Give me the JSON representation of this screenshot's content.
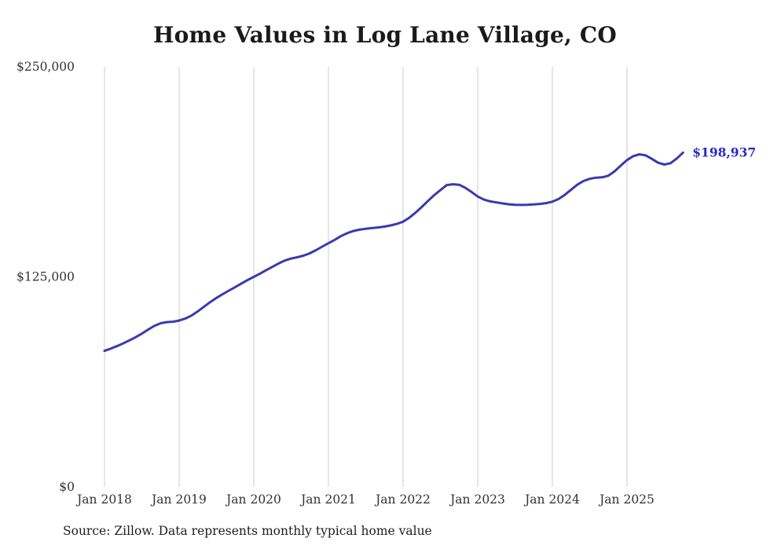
{
  "page": {
    "title": "Home Values in Log Lane Village, CO",
    "source_note": "Source: Zillow. Data represents monthly typical home value"
  },
  "chart_data": {
    "type": "line",
    "title": "Home Values in Log Lane Village, CO",
    "x": [
      "2018-01",
      "2018-02",
      "2018-03",
      "2018-04",
      "2018-05",
      "2018-06",
      "2018-07",
      "2018-08",
      "2018-09",
      "2018-10",
      "2018-11",
      "2018-12",
      "2019-01",
      "2019-02",
      "2019-03",
      "2019-04",
      "2019-05",
      "2019-06",
      "2019-07",
      "2019-08",
      "2019-09",
      "2019-10",
      "2019-11",
      "2019-12",
      "2020-01",
      "2020-02",
      "2020-03",
      "2020-04",
      "2020-05",
      "2020-06",
      "2020-07",
      "2020-08",
      "2020-09",
      "2020-10",
      "2020-11",
      "2020-12",
      "2021-01",
      "2021-02",
      "2021-03",
      "2021-04",
      "2021-05",
      "2021-06",
      "2021-07",
      "2021-08",
      "2021-09",
      "2021-10",
      "2021-11",
      "2021-12",
      "2022-01",
      "2022-02",
      "2022-03",
      "2022-04",
      "2022-05",
      "2022-06",
      "2022-07",
      "2022-08",
      "2022-09",
      "2022-10",
      "2022-11",
      "2022-12",
      "2023-01",
      "2023-02",
      "2023-03",
      "2023-04",
      "2023-05",
      "2023-06",
      "2023-07",
      "2023-08",
      "2023-09",
      "2023-10",
      "2023-11",
      "2023-12",
      "2024-01",
      "2024-02",
      "2024-03",
      "2024-04",
      "2024-05",
      "2024-06",
      "2024-07",
      "2024-08",
      "2024-09",
      "2024-10",
      "2024-11",
      "2024-12",
      "2025-01",
      "2025-02",
      "2025-03",
      "2025-04",
      "2025-05",
      "2025-06",
      "2025-07",
      "2025-08",
      "2025-09",
      "2025-10"
    ],
    "values": [
      81000,
      82300,
      83800,
      85400,
      87200,
      89100,
      91200,
      93600,
      95800,
      97400,
      98100,
      98300,
      99000,
      100200,
      102000,
      104500,
      107300,
      110000,
      112500,
      114700,
      116800,
      118900,
      121000,
      123100,
      125000,
      126900,
      129000,
      131000,
      133000,
      134700,
      135900,
      136700,
      137600,
      139000,
      140900,
      143000,
      145000,
      147000,
      149200,
      151000,
      152300,
      153100,
      153600,
      154000,
      154400,
      154900,
      155600,
      156500,
      157800,
      160200,
      163200,
      166600,
      170200,
      173600,
      176600,
      179600,
      180100,
      179800,
      178000,
      175500,
      172800,
      171000,
      169900,
      169300,
      168700,
      168200,
      167900,
      167800,
      167900,
      168100,
      168400,
      168900,
      169700,
      171300,
      173800,
      176800,
      179800,
      182000,
      183300,
      184000,
      184200,
      185200,
      187800,
      191200,
      194500,
      196800,
      197900,
      197300,
      195200,
      192900,
      191800,
      192600,
      195400,
      198937
    ],
    "ylim": [
      0,
      250000
    ],
    "yticks": [
      {
        "value": 0,
        "label": "$0"
      },
      {
        "value": 125000,
        "label": "$125,000"
      },
      {
        "value": 250000,
        "label": "$250,000"
      }
    ],
    "xticks": [
      {
        "month": "2018-01",
        "label": "Jan 2018"
      },
      {
        "month": "2019-01",
        "label": "Jan 2019"
      },
      {
        "month": "2020-01",
        "label": "Jan 2020"
      },
      {
        "month": "2021-01",
        "label": "Jan 2021"
      },
      {
        "month": "2022-01",
        "label": "Jan 2022"
      },
      {
        "month": "2023-01",
        "label": "Jan 2023"
      },
      {
        "month": "2024-01",
        "label": "Jan 2024"
      },
      {
        "month": "2025-01",
        "label": "Jan 2025"
      }
    ],
    "grid": "vertical-only",
    "legend": "none",
    "line_color": "#3a3aae",
    "grid_color": "#cccccc",
    "tick_color": "#333333",
    "end_label": "$198,937",
    "end_label_color": "#2929c8",
    "source": "Source: Zillow. Data represents monthly typical home value"
  }
}
